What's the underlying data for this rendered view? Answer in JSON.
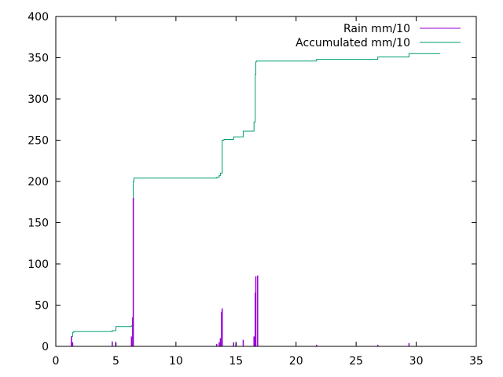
{
  "colors": {
    "rain": "#9400d3",
    "accumulated": "#009e73",
    "axes": "#000000",
    "background": "#ffffff"
  },
  "chart_data": {
    "type": "line",
    "title": "",
    "xlabel": "",
    "ylabel": "",
    "xlim": [
      0,
      35
    ],
    "ylim": [
      0,
      400
    ],
    "xticks": [
      0,
      5,
      10,
      15,
      20,
      25,
      30,
      35
    ],
    "yticks": [
      0,
      50,
      100,
      150,
      200,
      250,
      300,
      350,
      400
    ],
    "grid": false,
    "legend_position": "top-right",
    "series": [
      {
        "name": "Rain mm/10",
        "style": "impulses",
        "x": [
          1.3,
          1.4,
          4.7,
          5.0,
          6.3,
          6.4,
          6.45,
          13.4,
          13.6,
          13.7,
          13.8,
          13.85,
          14.8,
          15.0,
          15.6,
          16.5,
          16.6,
          16.65,
          16.8,
          21.7,
          26.8,
          29.4
        ],
        "values": [
          12,
          5,
          6,
          4,
          12,
          35,
          180,
          3,
          5,
          10,
          42,
          46,
          5,
          4,
          8,
          12,
          65,
          85,
          86,
          2,
          2,
          4
        ]
      },
      {
        "name": "Accumulated mm/10",
        "style": "steps",
        "x": [
          0.5,
          1.3,
          1.4,
          1.5,
          4.7,
          5.0,
          6.3,
          6.4,
          6.45,
          6.5,
          13.4,
          13.6,
          13.7,
          13.85,
          14.0,
          14.8,
          15.6,
          16.5,
          16.6,
          16.65,
          16.7,
          21.7,
          26.8,
          29.4,
          32.0
        ],
        "values": [
          0,
          12,
          17,
          18,
          19,
          24,
          25,
          35,
          200,
          204,
          205,
          207,
          210,
          250,
          251,
          254,
          261,
          272,
          330,
          345,
          346,
          348,
          351,
          355,
          355
        ]
      }
    ]
  }
}
